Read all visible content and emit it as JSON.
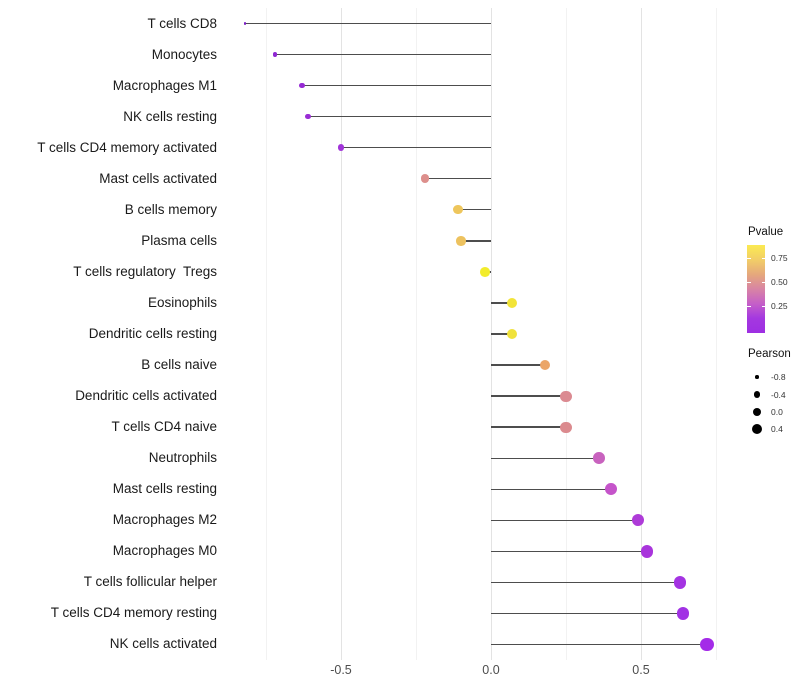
{
  "chart_data": {
    "type": "lollipop",
    "title": "",
    "xlabel": "",
    "ylabel": "",
    "xlim": [
      -0.83,
      0.77
    ],
    "grid": true,
    "x_ticks": [
      {
        "label": "-0.5",
        "value": -0.5
      },
      {
        "label": "0.0",
        "value": 0.0
      },
      {
        "label": "0.5",
        "value": 0.5
      }
    ],
    "major_gridlines": [
      -0.5,
      0.0,
      0.5
    ],
    "minor_gridlines": [
      -0.75,
      -0.25,
      0.25,
      0.75
    ],
    "points": [
      {
        "label": "T cells CD8",
        "pearson": -0.82,
        "color": "#7B1FC4"
      },
      {
        "label": "Monocytes",
        "pearson": -0.72,
        "color": "#8F28D2"
      },
      {
        "label": "Macrophages M1",
        "pearson": -0.63,
        "color": "#9629D4"
      },
      {
        "label": "NK cells resting",
        "pearson": -0.61,
        "color": "#992CD5"
      },
      {
        "label": "T cells CD4 memory activated",
        "pearson": -0.5,
        "color": "#A134D9"
      },
      {
        "label": "Mast cells activated",
        "pearson": -0.22,
        "color": "#DD8F8C"
      },
      {
        "label": "B cells memory",
        "pearson": -0.11,
        "color": "#EEC65C"
      },
      {
        "label": "Plasma cells",
        "pearson": -0.1,
        "color": "#EDC25F"
      },
      {
        "label": "T cells regulatory  Tregs",
        "pearson": -0.02,
        "color": "#F2EC2C"
      },
      {
        "label": "Eosinophils",
        "pearson": 0.07,
        "color": "#F2E438"
      },
      {
        "label": "Dendritic cells resting",
        "pearson": 0.07,
        "color": "#F0E23C"
      },
      {
        "label": "B cells naive",
        "pearson": 0.18,
        "color": "#EBA567"
      },
      {
        "label": "Dendritic cells activated",
        "pearson": 0.25,
        "color": "#DB8A91"
      },
      {
        "label": "T cells CD4 naive",
        "pearson": 0.25,
        "color": "#DB8A8E"
      },
      {
        "label": "Neutrophils",
        "pearson": 0.36,
        "color": "#C862BE"
      },
      {
        "label": "Mast cells resting",
        "pearson": 0.4,
        "color": "#C554CA"
      },
      {
        "label": "Macrophages M2",
        "pearson": 0.49,
        "color": "#AE3BD8"
      },
      {
        "label": "Macrophages M0",
        "pearson": 0.52,
        "color": "#A935DC"
      },
      {
        "label": "T cells follicular helper",
        "pearson": 0.63,
        "color": "#A433E2"
      },
      {
        "label": "T cells CD4 memory resting",
        "pearson": 0.64,
        "color": "#A132E4"
      },
      {
        "label": "NK cells activated",
        "pearson": 0.72,
        "color": "#A42BE8"
      }
    ],
    "legend_pvalue": {
      "title": "Pvalue",
      "ticks": [
        "0.75",
        "0.50",
        "0.25"
      ],
      "gradient": [
        "#FBEA51",
        "#F2CE67",
        "#E5A87C",
        "#D884A4",
        "#C55FC8",
        "#A438E0",
        "#9E2FE2"
      ]
    },
    "legend_pearson": {
      "title": "Pearson",
      "entries": [
        {
          "label": "-0.8",
          "size": 3.5
        },
        {
          "label": "-0.4",
          "size": 6.5
        },
        {
          "label": "0.0",
          "size": 8.5
        },
        {
          "label": "0.4",
          "size": 10
        }
      ],
      "dot_color": "#000000"
    },
    "stem_color": "#4D4D4D"
  }
}
